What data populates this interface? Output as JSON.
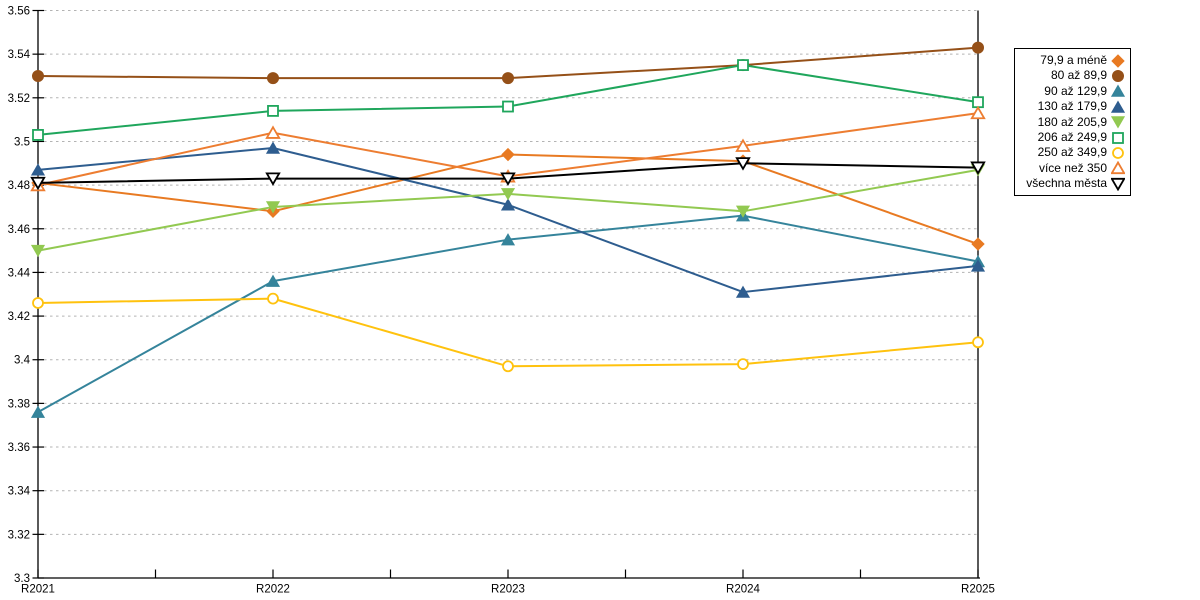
{
  "chart_data": {
    "type": "line",
    "title": "",
    "xlabel": "",
    "ylabel": "",
    "x_categories": [
      "R2021",
      "R2022",
      "R2023",
      "R2024",
      "R2025"
    ],
    "y_axis": {
      "min": 3.3,
      "max": 3.56,
      "step": 0.02,
      "tick_labels": [
        "3.3",
        "3.32",
        "3.34",
        "3.36",
        "3.38",
        "3.4",
        "3.42",
        "3.44",
        "3.46",
        "3.48",
        "3.5",
        "3.52",
        "3.54",
        "3.56"
      ]
    },
    "grid": {
      "show": true,
      "style": "dashed",
      "color": "#b3b3b3"
    },
    "legend_position": "right",
    "series": [
      {
        "name": "79,9 a méně",
        "color": "#e87a22",
        "marker": "diamond",
        "fill": "solid",
        "values": [
          3.481,
          3.468,
          3.494,
          3.491,
          3.453
        ]
      },
      {
        "name": "80 až 89,9",
        "color": "#955018",
        "marker": "circle",
        "fill": "solid",
        "values": [
          3.53,
          3.529,
          3.529,
          3.535,
          3.543
        ]
      },
      {
        "name": "90 až 129,9",
        "color": "#35849b",
        "marker": "triangle-up",
        "fill": "solid",
        "values": [
          3.376,
          3.436,
          3.455,
          3.466,
          3.445
        ]
      },
      {
        "name": "130 až 179,9",
        "color": "#2e5d8f",
        "marker": "triangle-up",
        "fill": "solid",
        "values": [
          3.487,
          3.497,
          3.471,
          3.431,
          3.443
        ]
      },
      {
        "name": "180 až 205,9",
        "color": "#92c951",
        "marker": "triangle-down",
        "fill": "solid",
        "values": [
          3.45,
          3.47,
          3.476,
          3.468,
          3.487
        ]
      },
      {
        "name": "206 až 249,9",
        "color": "#1fa65c",
        "marker": "square",
        "fill": "hollow",
        "values": [
          3.503,
          3.514,
          3.516,
          3.535,
          3.518
        ]
      },
      {
        "name": "250 až 349,9",
        "color": "#ffc20e",
        "marker": "circle",
        "fill": "hollow",
        "values": [
          3.426,
          3.428,
          3.397,
          3.398,
          3.408
        ]
      },
      {
        "name": "více než 350",
        "color": "#ed7d31",
        "marker": "triangle-up",
        "fill": "hollow",
        "values": [
          3.48,
          3.504,
          3.484,
          3.498,
          3.513
        ]
      },
      {
        "name": "všechna města",
        "color": "#000000",
        "marker": "triangle-down",
        "fill": "hollow",
        "values": [
          3.481,
          3.483,
          3.483,
          3.49,
          3.488
        ]
      }
    ]
  }
}
